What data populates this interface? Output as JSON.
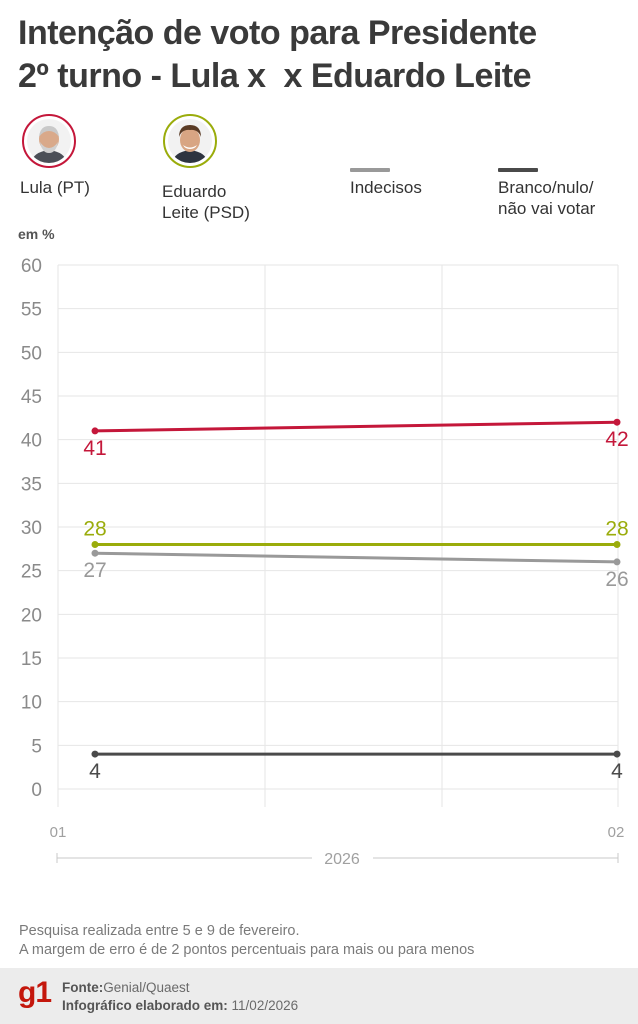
{
  "header": {
    "title_line1": "Intenção de voto para Presidente",
    "title_line2": "2º turno - Lula x  x Eduardo Leite"
  },
  "legend": [
    {
      "id": "lula",
      "label": "Lula (PT)",
      "color": "#c4173a",
      "marker": "photo"
    },
    {
      "id": "leite",
      "label_line1": "Eduardo",
      "label_line2": "Leite (PSD)",
      "color": "#9aac0b",
      "marker": "photo"
    },
    {
      "id": "indecisos",
      "label": "Indecisos",
      "color": "#999999",
      "marker": "line"
    },
    {
      "id": "branco",
      "label_line1": "Branco/nulo/",
      "label_line2": "não vai votar",
      "color": "#4a4a4a",
      "marker": "line"
    }
  ],
  "chart_data": {
    "type": "line",
    "unit_label": "em %",
    "x": [
      "01",
      "02"
    ],
    "x_group_label": "2026",
    "ylim": [
      0,
      60
    ],
    "yticks": [
      0,
      5,
      10,
      15,
      20,
      25,
      30,
      35,
      40,
      45,
      50,
      55,
      60
    ],
    "grid": true,
    "series": [
      {
        "name": "Lula (PT)",
        "color": "#c4173a",
        "values": [
          41,
          42
        ],
        "label_pos": [
          "below",
          "below"
        ]
      },
      {
        "name": "Eduardo Leite (PSD)",
        "color": "#9aac0b",
        "values": [
          28,
          28
        ],
        "label_pos": [
          "above",
          "above"
        ]
      },
      {
        "name": "Indecisos",
        "color": "#999999",
        "values": [
          27,
          26
        ],
        "label_pos": [
          "below",
          "below"
        ]
      },
      {
        "name": "Branco/nulo/não vai votar",
        "color": "#4a4a4a",
        "values": [
          4,
          4
        ],
        "label_pos": [
          "below",
          "below"
        ]
      }
    ]
  },
  "note": {
    "line1": "Pesquisa realizada entre 5 e 9 de fevereiro.",
    "line2": "A margem de erro é de 2 pontos percentuais para mais ou para menos"
  },
  "footer": {
    "logo": "g1",
    "source_label": "Fonte:",
    "source_value": "Genial/Quaest",
    "credit_label": "Infográfico elaborado em:",
    "credit_value": "11/02/2026"
  }
}
